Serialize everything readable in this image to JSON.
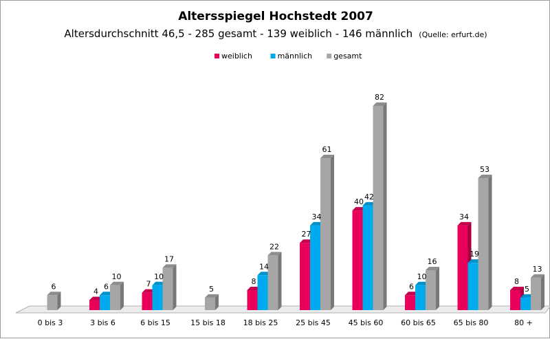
{
  "chart_data": {
    "type": "bar",
    "title": "Altersspiegel Hochstedt 2007",
    "subtitle": "Altersdurchschnitt 46,5 - 285 gesamt - 139 weiblich - 146 männlich",
    "source_note": "(Quelle: erfurt.de)",
    "legend_position": "top-center",
    "categories": [
      "0 bis 3",
      "3 bis 6",
      "6 bis 15",
      "15 bis 18",
      "18 bis 25",
      "25 bis 45",
      "45 bis 60",
      "60 bis 65",
      "65 bis 80",
      "80 +"
    ],
    "series": [
      {
        "name": "weiblich",
        "color": "#e8005a",
        "values": [
          null,
          4,
          7,
          null,
          8,
          27,
          40,
          6,
          34,
          8
        ]
      },
      {
        "name": "männlich",
        "color": "#00aaee",
        "values": [
          null,
          6,
          10,
          null,
          14,
          34,
          42,
          10,
          19,
          5
        ]
      },
      {
        "name": "gesamt",
        "color": "#a6a6a6",
        "values": [
          6,
          10,
          17,
          5,
          22,
          61,
          82,
          16,
          53,
          13
        ]
      }
    ],
    "ylim": [
      0,
      82
    ],
    "grid": false
  }
}
